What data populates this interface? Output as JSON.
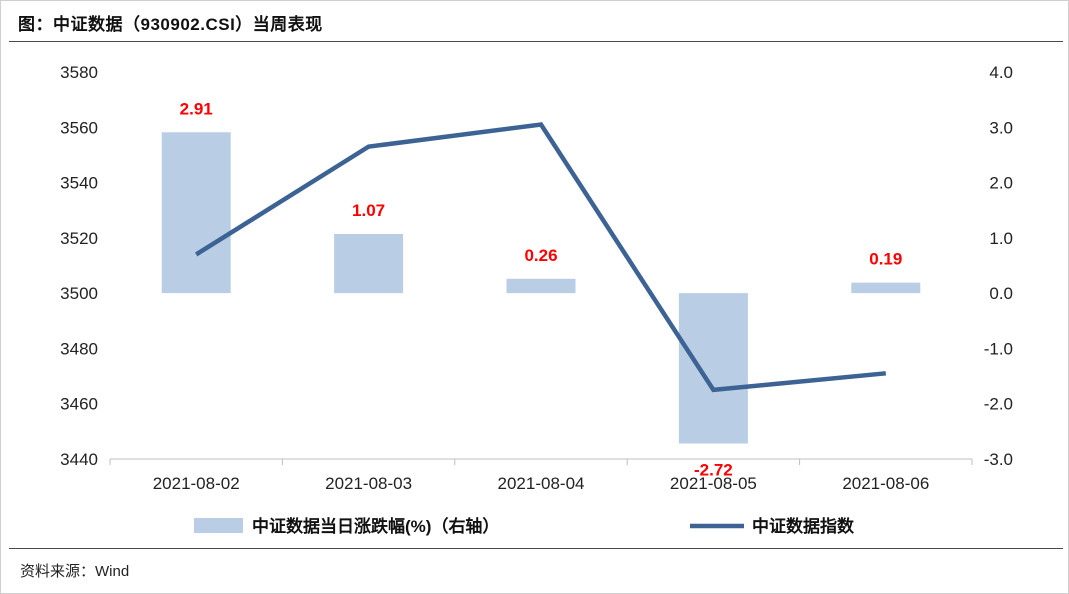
{
  "header": {
    "title": "图：中证数据（930902.CSI）当周表现"
  },
  "footer": {
    "source": "资料来源：Wind"
  },
  "chart_data": {
    "type": "bar+line",
    "categories": [
      "2021-08-02",
      "2021-08-03",
      "2021-08-04",
      "2021-08-05",
      "2021-08-06"
    ],
    "series": [
      {
        "name": "中证数据当日涨跌幅(%)（右轴）",
        "type": "bar",
        "axis": "right",
        "values": [
          2.91,
          1.07,
          0.26,
          -2.72,
          0.19
        ],
        "labels": [
          "2.91",
          "1.07",
          "0.26",
          "-2.72",
          "0.19"
        ],
        "color": "#b9cde5",
        "label_color": "#ff0000"
      },
      {
        "name": "中证数据指数",
        "type": "line",
        "axis": "left",
        "values": [
          3514,
          3553,
          3561,
          3465,
          3471
        ],
        "color": "#3c6393"
      }
    ],
    "y_left": {
      "ylim": [
        3440,
        3580
      ],
      "ticks": [
        "3440",
        "3460",
        "3480",
        "3500",
        "3520",
        "3540",
        "3560",
        "3580"
      ]
    },
    "y_right": {
      "ylim": [
        -3.0,
        4.0
      ],
      "ticks": [
        "-3.0",
        "-2.0",
        "-1.0",
        "0.0",
        "1.0",
        "2.0",
        "3.0",
        "4.0"
      ]
    },
    "grid": false,
    "legend_position": "bottom"
  }
}
